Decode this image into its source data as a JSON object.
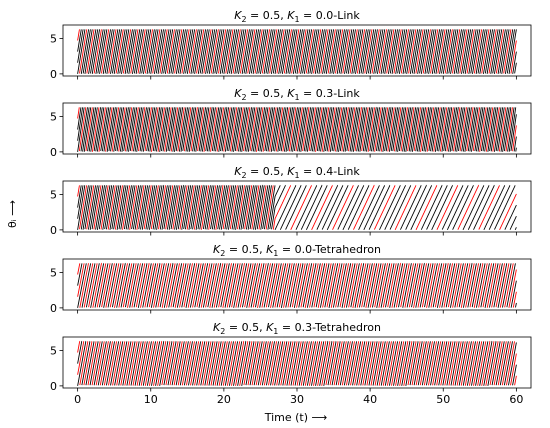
{
  "chart_data": {
    "type": "line",
    "xlabel": "Time (t) ⟶",
    "ylabel": "θᵢ ⟶",
    "xlim": [
      -2,
      62
    ],
    "ylim": [
      -0.3,
      6.9
    ],
    "x_ticks": [
      0,
      10,
      20,
      30,
      40,
      50,
      60
    ],
    "y_ticks": [
      0,
      5
    ],
    "colors": {
      "black": "#000000",
      "red": "#ff0000"
    },
    "subplots": [
      {
        "title": "K₂ = 0.5, K₁ = 0.0-Link",
        "title_parts": [
          "K",
          "2",
          " = 0.5, ",
          "K",
          "1",
          " = 0.0-Link"
        ],
        "series": [
          {
            "color": "black",
            "omega": 6.2832,
            "phase": 0.0
          },
          {
            "color": "black",
            "omega": 6.2832,
            "phase": 3.1416
          },
          {
            "color": "black",
            "omega": 6.2832,
            "phase": 1.5708
          },
          {
            "color": "red",
            "omega": 6.2832,
            "phase": 4.7124
          }
        ]
      },
      {
        "title": "K₂ = 0.5, K₁ = 0.3-Link",
        "title_parts": [
          "K",
          "2",
          " = 0.5, ",
          "K",
          "1",
          " = 0.3-Link"
        ],
        "series": [
          {
            "color": "black",
            "omega": 7.0,
            "phase": 0.0
          },
          {
            "color": "black",
            "omega": 7.0,
            "phase": 3.1416
          },
          {
            "color": "black",
            "omega": 7.0,
            "phase": 1.5708
          },
          {
            "color": "red",
            "omega": 7.0,
            "phase": 4.7124
          }
        ]
      },
      {
        "title": "K₂ = 0.5, K₁ = 0.4-Link",
        "title_parts": [
          "K",
          "2",
          " = 0.5, ",
          "K",
          "1",
          " = 0.4-Link"
        ],
        "series": [
          {
            "color": "black",
            "omega": 6.4,
            "phase": 0.0,
            "omega2": 2.2,
            "t_switch": 27
          },
          {
            "color": "black",
            "omega": 6.4,
            "phase": 3.1416,
            "omega2": 2.2,
            "t_switch": 27
          },
          {
            "color": "black",
            "omega": 6.4,
            "phase": 1.5708,
            "omega2": 2.2,
            "t_switch": 27
          },
          {
            "color": "red",
            "omega": 6.4,
            "phase": 4.7124,
            "omega2": 2.2,
            "t_switch": 27
          }
        ]
      },
      {
        "title": "K₂ = 0.5, K₁ = 0.0-Tetrahedron",
        "title_parts": [
          "K",
          "2",
          " = 0.5, ",
          "K",
          "1",
          " = 0.0-Tetrahedron"
        ],
        "series": [
          {
            "color": "black",
            "omega": 5.3,
            "phase": 0.0
          },
          {
            "color": "black",
            "omega": 5.3,
            "phase": 3.1416
          },
          {
            "color": "red",
            "omega": 5.3,
            "phase": 1.5708
          },
          {
            "color": "red",
            "omega": 5.3,
            "phase": 4.7124
          }
        ]
      },
      {
        "title": "K₂ = 0.5, K₁ = 0.3-Tetrahedron",
        "title_parts": [
          "K",
          "2",
          " = 0.5, ",
          "K",
          "1",
          " = 0.3-Tetrahedron"
        ],
        "series": [
          {
            "color": "black",
            "omega": 5.6,
            "phase": 0.0
          },
          {
            "color": "black",
            "omega": 5.6,
            "phase": 3.1416
          },
          {
            "color": "red",
            "omega": 5.6,
            "phase": 1.5708
          },
          {
            "color": "red",
            "omega": 5.6,
            "phase": 4.7124
          }
        ]
      }
    ]
  }
}
